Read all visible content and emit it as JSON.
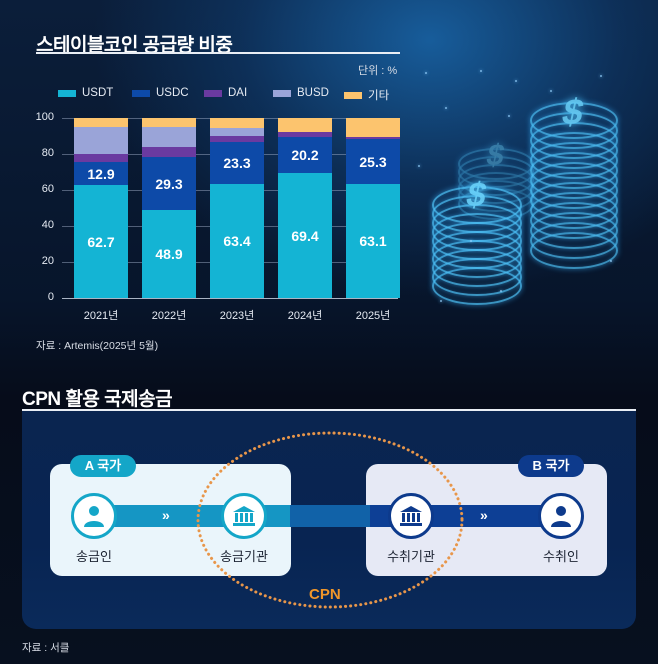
{
  "section1": {
    "title": "스테이블코인 공급량 비중",
    "unit": "단위 : %",
    "source": "자료 : Artemis(2025년 5월)"
  },
  "chart_data": {
    "type": "bar",
    "stacked": true,
    "title": "스테이블코인 공급량 비중",
    "unit": "%",
    "xlabel": "",
    "ylabel": "",
    "ylim": [
      0,
      100
    ],
    "yticks": [
      0,
      20,
      40,
      60,
      80,
      100
    ],
    "grid": true,
    "legend_position": "top",
    "categories": [
      "2021년",
      "2022년",
      "2023년",
      "2024년",
      "2025년"
    ],
    "series": [
      {
        "name": "USDT",
        "color": "#14b4d4",
        "values": [
          62.7,
          48.9,
          63.4,
          69.4,
          63.1
        ],
        "labeled": true
      },
      {
        "name": "USDC",
        "color": "#0d4aa8",
        "values": [
          12.9,
          29.3,
          23.3,
          20.2,
          25.3
        ],
        "labeled": true
      },
      {
        "name": "DAI",
        "color": "#6a3aa0",
        "values": [
          4.4,
          5.8,
          3.5,
          2.9,
          1.0
        ],
        "labeled": false
      },
      {
        "name": "BUSD",
        "color": "#9aa4d8",
        "values": [
          15.0,
          11.0,
          4.3,
          0.0,
          0.0
        ],
        "labeled": false
      },
      {
        "name": "기타",
        "color": "#fcc46e",
        "values": [
          5.0,
          5.0,
          5.5,
          7.5,
          10.6
        ],
        "labeled": false
      }
    ],
    "source": "자료 : Artemis(2025년 5월)"
  },
  "section2": {
    "title": "CPN 활용 국제송금",
    "country_a": "A 국가",
    "country_b": "B 국가",
    "nodes": [
      {
        "label": "송금인",
        "icon": "person-icon"
      },
      {
        "label": "송금기관",
        "icon": "bank-icon"
      },
      {
        "label": "수취기관",
        "icon": "bank-icon"
      },
      {
        "label": "수취인",
        "icon": "person-icon"
      }
    ],
    "arrow": "»",
    "network_label": "CPN",
    "source": "자료 : 서클"
  },
  "colors": {
    "teal": "#14a6c8",
    "navy": "#0d3a8c",
    "orange": "#f0962a"
  }
}
